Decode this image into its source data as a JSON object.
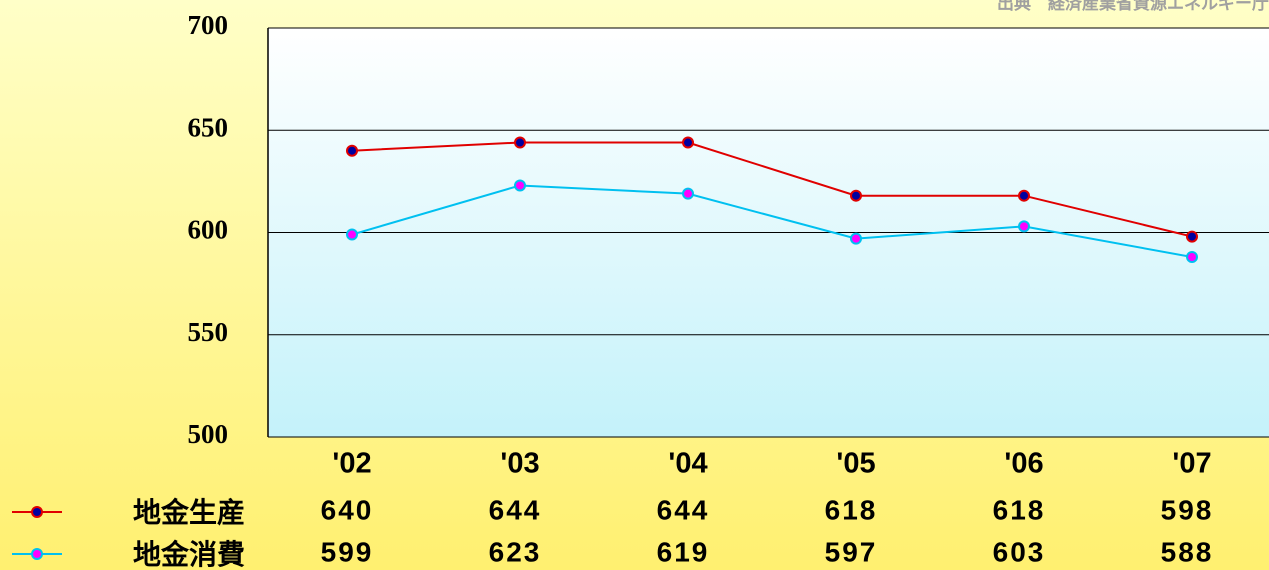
{
  "chart_data": {
    "type": "line",
    "source": "出典　経済産業省資源エネルギー庁",
    "categories": [
      "'02",
      "'03",
      "'04",
      "'05",
      "'06",
      "'07"
    ],
    "series": [
      {
        "name": "地金生産",
        "color": "#e00000",
        "marker_color": "#0000a0",
        "values": [
          640,
          644,
          644,
          618,
          618,
          598
        ]
      },
      {
        "name": "地金消費",
        "color": "#00c0f0",
        "marker_color": "#ff00ff",
        "values": [
          599,
          623,
          619,
          597,
          603,
          588
        ]
      }
    ],
    "ylim": [
      500,
      700
    ],
    "yticks": [
      500,
      550,
      600,
      650,
      700
    ],
    "grid": true
  }
}
